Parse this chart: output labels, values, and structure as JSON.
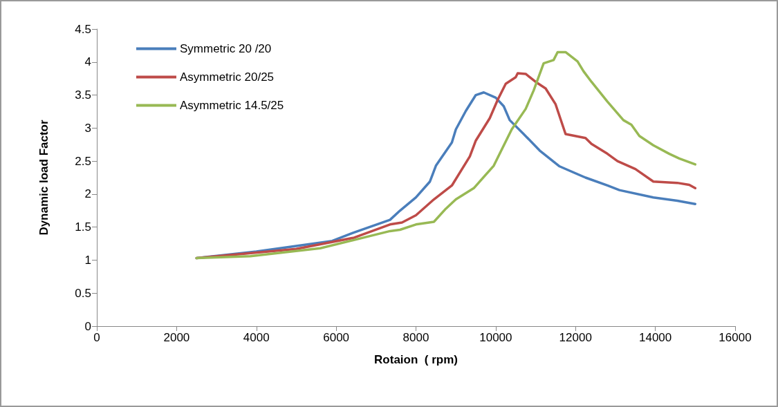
{
  "chart_data": {
    "type": "line",
    "xlabel": "Rotaion  ( rpm)",
    "ylabel": "Dynamic load Factor",
    "xlim": [
      0,
      16000
    ],
    "xticks": [
      0,
      2000,
      4000,
      6000,
      8000,
      10000,
      12000,
      14000,
      16000
    ],
    "ylim": [
      0,
      4.5
    ],
    "yticks": [
      0,
      0.5,
      1,
      1.5,
      2,
      2.5,
      3,
      3.5,
      4,
      4.5
    ],
    "grid": false,
    "legend": "top left",
    "marker": "none",
    "line_style": "solid",
    "series": [
      {
        "name": "Symmetric 20 /20",
        "color": "#4a7ebb",
        "x": [
          2500,
          4000,
          5900,
          6450,
          7350,
          7600,
          8000,
          8350,
          8500,
          8900,
          9000,
          9250,
          9500,
          9700,
          10000,
          10200,
          10350,
          10700,
          11100,
          11600,
          12250,
          12800,
          13100,
          13950,
          14550,
          15000
        ],
        "values": [
          1.03,
          1.13,
          1.29,
          1.42,
          1.61,
          1.75,
          1.95,
          2.19,
          2.43,
          2.78,
          2.98,
          3.26,
          3.5,
          3.54,
          3.46,
          3.33,
          3.12,
          2.91,
          2.66,
          2.42,
          2.25,
          2.13,
          2.06,
          1.95,
          1.9,
          1.85
        ]
      },
      {
        "name": "Asymmetric 20/25",
        "color": "#be4b48",
        "x": [
          2500,
          5000,
          6450,
          7350,
          7650,
          8000,
          8450,
          8900,
          9350,
          9500,
          9850,
          10050,
          10250,
          10500,
          10550,
          10750,
          11000,
          11250,
          11500,
          11750,
          12250,
          12400,
          12800,
          13050,
          13500,
          13950,
          14550,
          14850,
          15000
        ],
        "values": [
          1.03,
          1.17,
          1.34,
          1.54,
          1.57,
          1.68,
          1.92,
          2.13,
          2.57,
          2.81,
          3.15,
          3.43,
          3.67,
          3.77,
          3.83,
          3.82,
          3.7,
          3.6,
          3.36,
          2.91,
          2.85,
          2.76,
          2.61,
          2.5,
          2.38,
          2.19,
          2.17,
          2.14,
          2.09
        ]
      },
      {
        "name": "Asymmetric 14.5/25",
        "color": "#98b954",
        "x": [
          2500,
          3850,
          5600,
          7350,
          7600,
          8000,
          8450,
          8750,
          9000,
          9450,
          9950,
          10400,
          10750,
          10950,
          11200,
          11450,
          11550,
          11750,
          12050,
          12200,
          12400,
          12800,
          13200,
          13400,
          13600,
          13950,
          14350,
          14600,
          15000
        ],
        "values": [
          1.03,
          1.06,
          1.18,
          1.44,
          1.46,
          1.54,
          1.58,
          1.78,
          1.92,
          2.09,
          2.43,
          2.98,
          3.29,
          3.57,
          3.98,
          4.03,
          4.15,
          4.15,
          4.01,
          3.86,
          3.7,
          3.4,
          3.12,
          3.05,
          2.88,
          2.74,
          2.61,
          2.54,
          2.45
        ]
      }
    ]
  }
}
